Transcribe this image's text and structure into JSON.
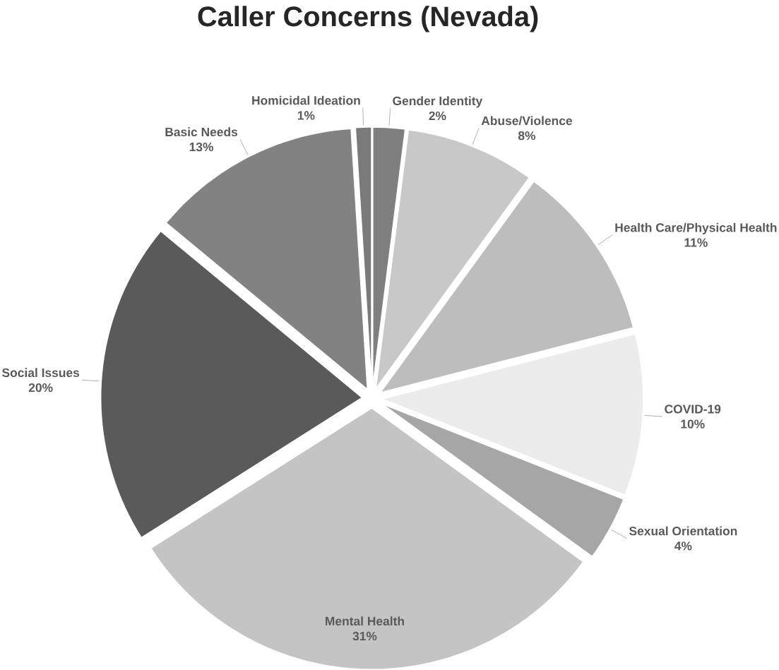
{
  "chart_data": {
    "type": "pie",
    "title": "Caller Concerns (Nevada)",
    "categories": [
      "Gender Identity",
      "Abuse/Violence",
      "Health Care/Physical Health",
      "COVID-19",
      "Sexual Orientation",
      "Mental Health",
      "Social Issues",
      "Basic Needs",
      "Homicidal Ideation"
    ],
    "values": [
      2,
      8,
      11,
      10,
      4,
      31,
      20,
      13,
      1
    ],
    "value_labels": [
      "2%",
      "8%",
      "11%",
      "10%",
      "4%",
      "31%",
      "20%",
      "13%",
      "1%"
    ],
    "colors": [
      "#7f7f7f",
      "#c8c8c8",
      "#bdbdbd",
      "#ececec",
      "#a6a6a6",
      "#c4c4c4",
      "#5a5a5a",
      "#828282",
      "#7a7a7a"
    ]
  }
}
